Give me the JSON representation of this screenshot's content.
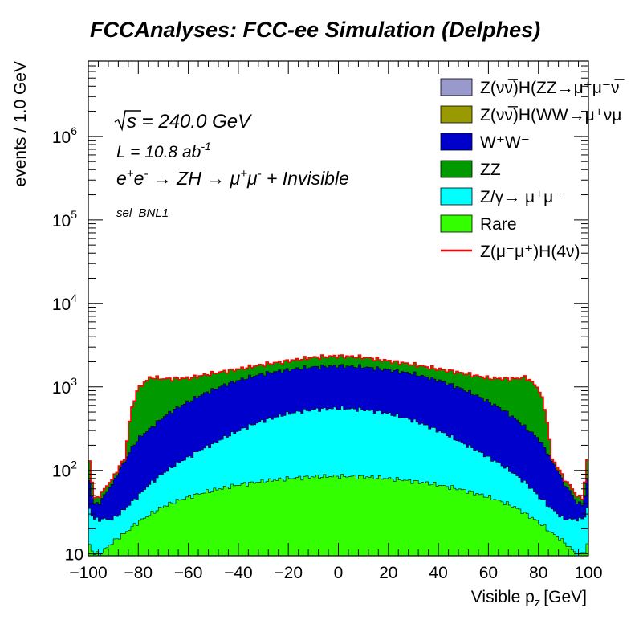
{
  "chart_data": {
    "type": "area",
    "title": "FCCAnalyses: FCC-ee Simulation (Delphes)",
    "xlabel": "Visible p",
    "xlabel_sub": "z",
    "xlabel_unit": "[GeV]",
    "ylabel": "events / 1.0 GeV",
    "xlim": [
      -100,
      100
    ],
    "ylim": [
      9.5,
      8000000
    ],
    "yscale": "log",
    "stacked": true,
    "xticks": [
      "−100",
      "−80",
      "−60",
      "−40",
      "−20",
      "0",
      "20",
      "40",
      "60",
      "80",
      "100"
    ],
    "xtick_values": [
      -100,
      -80,
      -60,
      -40,
      -20,
      0,
      20,
      40,
      60,
      80,
      100
    ],
    "yticks": [
      {
        "value": 10,
        "base": "10",
        "exp": ""
      },
      {
        "value": 100,
        "base": "10",
        "exp": "2"
      },
      {
        "value": 1000,
        "base": "10",
        "exp": "3"
      },
      {
        "value": 10000,
        "base": "10",
        "exp": "4"
      },
      {
        "value": 100000,
        "base": "10",
        "exp": "5"
      },
      {
        "value": 1000000,
        "base": "10",
        "exp": "6"
      }
    ],
    "annotations": {
      "energy_sqrt": "s",
      "energy_value": " = 240.0 GeV",
      "lumi_text": "L = 10.8 ab",
      "lumi_exp": "-1",
      "process_a": "e",
      "process_b": "e",
      "process_c": " → ZH → μ",
      "process_d": "μ",
      "process_e": " + Invisible",
      "selection": "sel_BNL1"
    },
    "x": [
      -100,
      -98,
      -95,
      -90,
      -85,
      -80,
      -75,
      -70,
      -60,
      -50,
      -40,
      -30,
      -20,
      -10,
      0,
      10,
      20,
      30,
      40,
      50,
      60,
      70,
      75,
      80,
      85,
      90,
      95,
      98,
      100
    ],
    "series": [
      {
        "name": "Rare",
        "color": "#33ff00",
        "values": [
          14,
          10,
          10,
          14,
          18,
          24,
          30,
          37,
          48,
          58,
          67,
          74,
          80,
          84,
          85,
          84,
          80,
          74,
          67,
          58,
          48,
          37,
          30,
          24,
          18,
          14,
          10,
          10,
          14
        ]
      },
      {
        "name": "Z/γ→ μ⁺μ⁻",
        "color": "#00ffff",
        "values": [
          24,
          16,
          16,
          12,
          17,
          25,
          40,
          55,
          95,
          150,
          230,
          320,
          400,
          450,
          470,
          450,
          400,
          320,
          230,
          150,
          95,
          55,
          40,
          25,
          17,
          12,
          16,
          16,
          24
        ]
      },
      {
        "name": "W⁺W⁻",
        "color": "#0000cc",
        "values": [
          50,
          12,
          16,
          45,
          100,
          190,
          250,
          340,
          520,
          720,
          900,
          1040,
          1120,
          1200,
          1230,
          1200,
          1120,
          1040,
          900,
          720,
          520,
          340,
          250,
          190,
          100,
          45,
          16,
          12,
          50
        ]
      },
      {
        "name": "ZZ",
        "color": "#009900",
        "values": [
          70,
          7,
          9,
          10,
          8,
          720,
          980,
          810,
          600,
          520,
          430,
          410,
          440,
          520,
          550,
          520,
          440,
          410,
          430,
          520,
          600,
          810,
          980,
          720,
          8,
          10,
          9,
          7,
          70
        ]
      },
      {
        "name": "Z(νν̅)H(WW→μ⁺νμ⁻ν̅)",
        "color": "#999900",
        "values": [
          0,
          0,
          0,
          0,
          0,
          2,
          3,
          3,
          4,
          4,
          5,
          5,
          5,
          5,
          5,
          5,
          5,
          5,
          5,
          4,
          4,
          3,
          3,
          2,
          0,
          0,
          0,
          0,
          0
        ]
      },
      {
        "name": "Z(νν̅)H(ZZ→μ⁺μ⁻νν̅)",
        "color": "#9999cc",
        "values": [
          0,
          0,
          0,
          0,
          0,
          1,
          1,
          1,
          2,
          2,
          2,
          2,
          2,
          2,
          2,
          2,
          2,
          2,
          2,
          2,
          2,
          1,
          1,
          1,
          0,
          0,
          0,
          0,
          0
        ]
      }
    ],
    "signal": {
      "name": "Z(μ⁻μ⁺)H(4ν)",
      "color": "#ff0000",
      "values": [
        158,
        45,
        51,
        81,
        143,
        962,
        1304,
        1246,
        1269,
        1454,
        1634,
        1851,
        2047,
        2261,
        2342,
        2261,
        2047,
        1851,
        1634,
        1454,
        1269,
        1246,
        1304,
        962,
        143,
        81,
        51,
        45,
        158
      ]
    },
    "legend": {
      "position": "top-right",
      "entries": [
        {
          "text": "Z(νν̅)H(ZZ→μ⁺μ⁻ν̅",
          "color": "#9999cc",
          "style": "box"
        },
        {
          "text": "Z(νν̅)H(WW→μ⁺νμ",
          "color": "#999900",
          "style": "box"
        },
        {
          "text": "W⁺W⁻",
          "color": "#0000cc",
          "style": "box"
        },
        {
          "text": "ZZ",
          "color": "#009900",
          "style": "box"
        },
        {
          "text": "Z/γ→ μ⁺μ⁻",
          "color": "#00ffff",
          "style": "box"
        },
        {
          "text": "Rare",
          "color": "#33ff00",
          "style": "box"
        },
        {
          "text": "Z(μ⁻μ⁺)H(4ν)",
          "color": "#ff0000",
          "style": "line"
        }
      ]
    }
  }
}
